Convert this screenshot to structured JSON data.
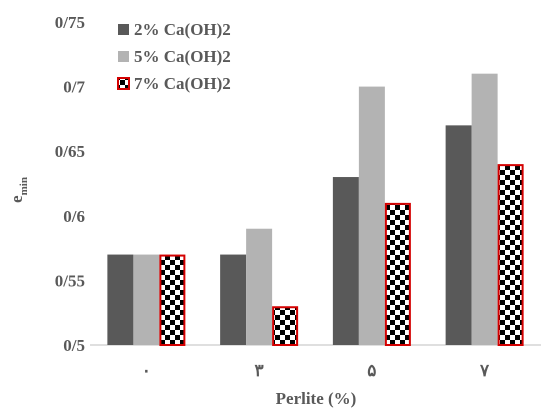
{
  "chart_data": {
    "type": "bar",
    "title": "",
    "xlabel": "Perlite (%)",
    "ylabel_main": "e",
    "ylabel_sub": "min",
    "categories": [
      "۰",
      "۳",
      "۵",
      "۷"
    ],
    "ylim": [
      0.5,
      0.75
    ],
    "yticks": [
      0.5,
      0.55,
      0.6,
      0.65,
      0.7,
      0.75
    ],
    "ytick_labels": [
      "0/5",
      "0/55",
      "0/6",
      "0/65",
      "0/7",
      "0/75"
    ],
    "grid": false,
    "legend_position": "top-left",
    "series": [
      {
        "name": "2% Ca(OH)2",
        "values": [
          0.57,
          0.57,
          0.63,
          0.67
        ],
        "color": "#595959",
        "pattern": "solid"
      },
      {
        "name": "5% Ca(OH)2",
        "values": [
          0.57,
          0.59,
          0.7,
          0.71
        ],
        "color": "#b3b3b3",
        "pattern": "solid"
      },
      {
        "name": "7% Ca(OH)2",
        "values": [
          0.57,
          0.53,
          0.61,
          0.64
        ],
        "color": "#000000",
        "pattern": "checker",
        "border": "#d40000"
      }
    ]
  }
}
